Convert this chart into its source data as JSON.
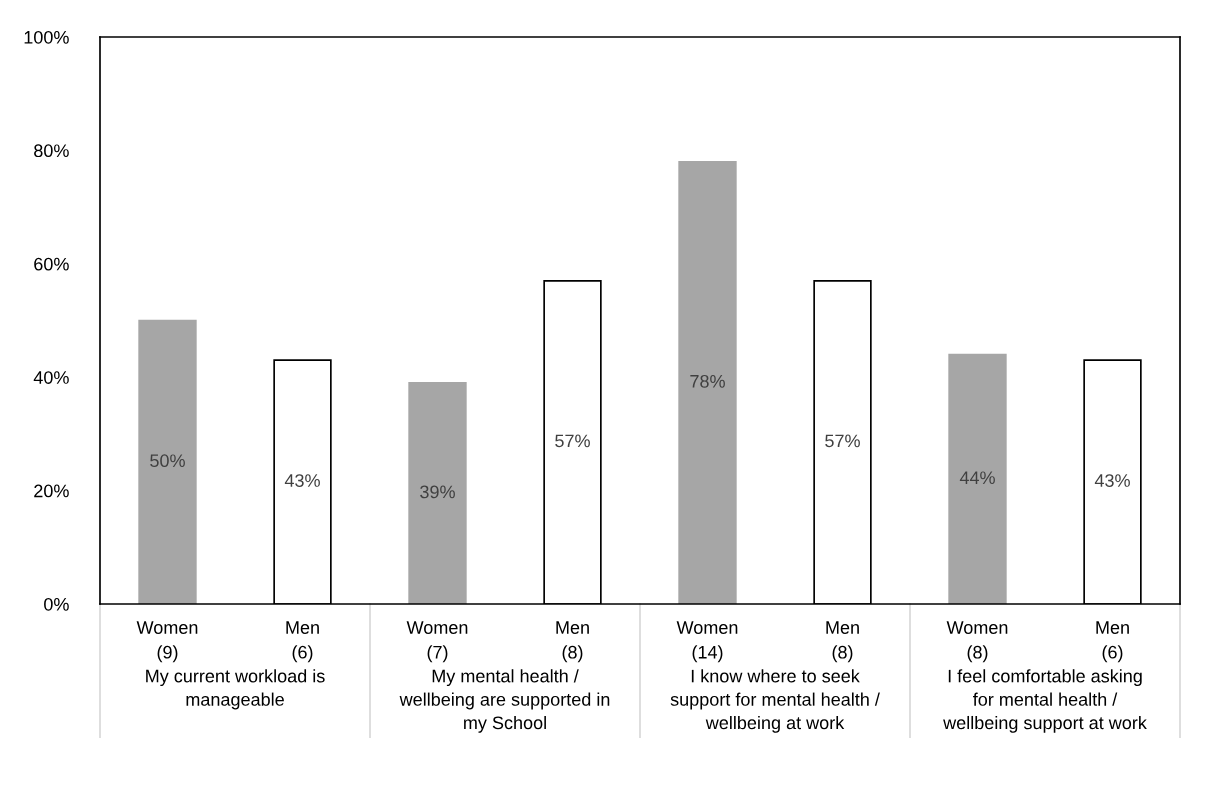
{
  "chart_data": {
    "type": "bar",
    "categories": [
      "Women\n(9)",
      "Men\n(6)",
      "Women\n(7)",
      "Men\n(8)",
      "Women\n(14)",
      "Men\n(8)",
      "Women\n(8)",
      "Men\n(6)"
    ],
    "values": [
      50,
      43,
      39,
      57,
      78,
      57,
      44,
      43
    ],
    "value_labels": [
      "50%",
      "43%",
      "39%",
      "57%",
      "78%",
      "57%",
      "44%",
      "43%"
    ],
    "colors": [
      "#a6a6a6",
      "#ffffff",
      "#a6a6a6",
      "#ffffff",
      "#a6a6a6",
      "#ffffff",
      "#a6a6a6",
      "#ffffff"
    ],
    "ylim": [
      0,
      100
    ],
    "yticks": [
      {
        "value": 0,
        "label": "0%"
      },
      {
        "value": 20,
        "label": "20%"
      },
      {
        "value": 40,
        "label": "40%"
      },
      {
        "value": 60,
        "label": "60%"
      },
      {
        "value": 80,
        "label": "80%"
      },
      {
        "value": 100,
        "label": "100%"
      }
    ],
    "annotations": [
      "My current workload is\nmanageable",
      "My mental health /\nwellbeing are supported in\nmy School",
      "I know where to seek\nsupport for mental health /\nwellbeing at work",
      "I feel comfortable asking\nfor mental health /\nwellbeing support at work"
    ],
    "grid": false,
    "legend": false
  }
}
